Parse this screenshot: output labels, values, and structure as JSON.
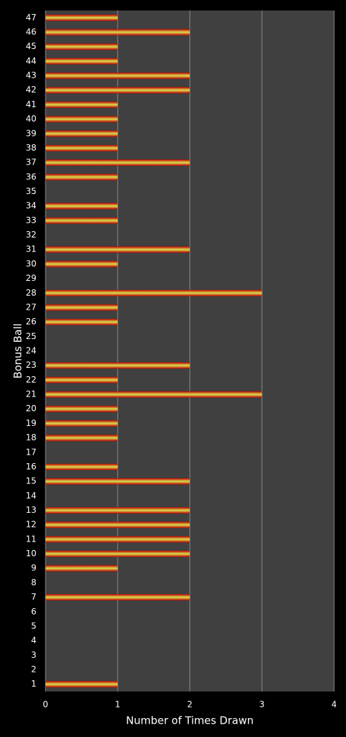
{
  "chart_data": {
    "type": "hbar",
    "x_label": "Number of Times Drawn",
    "y_label": "Bonus Ball",
    "categories": [
      "1",
      "2",
      "3",
      "4",
      "5",
      "6",
      "7",
      "8",
      "9",
      "10",
      "11",
      "12",
      "13",
      "14",
      "15",
      "16",
      "17",
      "18",
      "19",
      "20",
      "21",
      "22",
      "23",
      "24",
      "25",
      "26",
      "27",
      "28",
      "29",
      "30",
      "31",
      "32",
      "33",
      "34",
      "35",
      "36",
      "37",
      "38",
      "39",
      "40",
      "41",
      "42",
      "43",
      "44",
      "45",
      "46",
      "47"
    ],
    "values": [
      1,
      0,
      0,
      0,
      0,
      0,
      2,
      0,
      1,
      2,
      2,
      2,
      2,
      0,
      2,
      1,
      0,
      1,
      1,
      1,
      3,
      1,
      2,
      0,
      0,
      1,
      1,
      3,
      0,
      1,
      2,
      0,
      1,
      1,
      0,
      1,
      2,
      1,
      1,
      1,
      1,
      2,
      2,
      1,
      1,
      2,
      1
    ],
    "color": "#d8e050",
    "xlim": [
      0,
      4
    ],
    "xticks": [
      0,
      1,
      2,
      3,
      4
    ],
    "grid": true
  }
}
